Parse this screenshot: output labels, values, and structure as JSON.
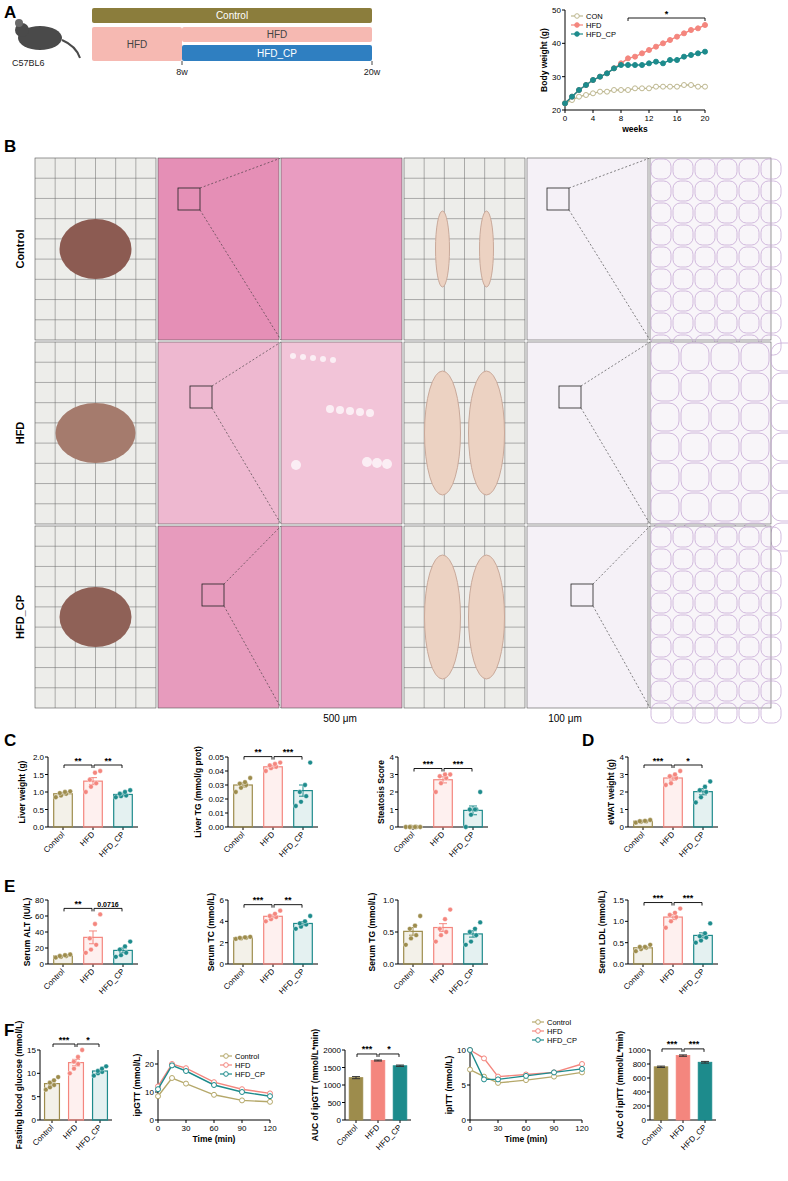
{
  "panel_labels": [
    "A",
    "B",
    "C",
    "D",
    "E",
    "F"
  ],
  "schematic": {
    "subject": "C57BL6",
    "groups": [
      {
        "label": "Control",
        "color": "#8b7d3c"
      },
      {
        "label": "HFD",
        "color": "#f6b9b2"
      },
      {
        "label": "HFD",
        "color": "#f6b9b2"
      },
      {
        "label": "HFD_CP",
        "color": "#2f7fc1"
      }
    ],
    "timepoints": [
      "8w",
      "20w"
    ]
  },
  "histology": {
    "rows": [
      "Control",
      "HFD",
      "HFD_CP"
    ],
    "scale_bars": [
      "500 μm",
      "100 μm"
    ]
  },
  "chart_data": [
    {
      "type": "line",
      "x_label": "weeks",
      "y_label": "Body weight (g)",
      "x": [
        0,
        1,
        2,
        3,
        4,
        5,
        6,
        7,
        8,
        9,
        10,
        11,
        12,
        13,
        14,
        15,
        16,
        17,
        18,
        19,
        20
      ],
      "xlim": [
        0,
        20
      ],
      "xticks": [
        0,
        4,
        8,
        12,
        16,
        20
      ],
      "ylim": [
        20,
        50
      ],
      "yticks": [
        20,
        30,
        40,
        50
      ],
      "legend": "upper left",
      "marker": "circle",
      "series": [
        {
          "name": "CON",
          "color": "#bdb78f",
          "marker": "open_circle",
          "values": [
            22,
            23,
            24,
            24.5,
            25,
            25.5,
            25.5,
            26,
            26,
            26,
            26.5,
            26.5,
            26.5,
            27,
            27,
            27,
            27,
            27.5,
            27.5,
            27,
            27
          ]
        },
        {
          "name": "HFD",
          "color": "#f4867e",
          "values": [
            22,
            24,
            26,
            27.5,
            29,
            30,
            31,
            32.5,
            34,
            35.5,
            36,
            37,
            38,
            39,
            40,
            41,
            42,
            43,
            44,
            44.5,
            45.5
          ]
        },
        {
          "name": "HFD_CP",
          "color": "#1d8b8c",
          "values": [
            22,
            24,
            26,
            27.5,
            29,
            30,
            31,
            32.5,
            33.5,
            33.5,
            33.5,
            33.5,
            34,
            34.5,
            34,
            35,
            35,
            36,
            36.5,
            37,
            37.5
          ]
        }
      ],
      "annotations": [
        {
          "text": "*",
          "x_start": 9,
          "x_end": 20
        }
      ]
    },
    {
      "type": "bar",
      "y_label": "Liver weight (g)",
      "categories": [
        "Control",
        "HFD",
        "HFD_CP"
      ],
      "colors": [
        "#9d8c4c",
        "#f4867e",
        "#1d8b8c"
      ],
      "values": [
        0.95,
        1.31,
        0.93
      ],
      "errors": [
        0.03,
        0.1,
        0.04
      ],
      "points": [
        [
          0.85,
          0.9,
          0.95,
          0.97,
          1.0,
          1.02
        ],
        [
          1.0,
          1.15,
          1.25,
          1.35,
          1.55,
          1.6
        ],
        [
          0.85,
          0.88,
          0.9,
          0.95,
          1.0,
          1.05
        ]
      ],
      "ylim": [
        0,
        2
      ],
      "yticks": [
        {
          "value": 0,
          "label": "0.0"
        },
        {
          "value": 0.5,
          "label": "0.5"
        },
        {
          "value": 1,
          "label": "1.0"
        },
        {
          "value": 1.5,
          "label": "1.5"
        },
        {
          "value": 2,
          "label": "2.0"
        }
      ],
      "annotations": [
        {
          "from": "Control",
          "to": "HFD",
          "text": "**"
        },
        {
          "from": "HFD",
          "to": "HFD_CP",
          "text": "**"
        }
      ]
    },
    {
      "type": "bar",
      "y_label": "Liver TG (mmol/g prot)",
      "categories": [
        "Control",
        "HFD",
        "HFD_CP"
      ],
      "colors": [
        "#9d8c4c",
        "#f4867e",
        "#1d8b8c"
      ],
      "values": [
        0.03,
        0.043,
        0.026
      ],
      "errors": [
        0.0015,
        0.001,
        0.004
      ],
      "points": [
        [
          0.025,
          0.028,
          0.03,
          0.031,
          0.032,
          0.035
        ],
        [
          0.04,
          0.042,
          0.043,
          0.044,
          0.045,
          0.046
        ],
        [
          0.015,
          0.018,
          0.022,
          0.025,
          0.03,
          0.046
        ]
      ],
      "ylim": [
        0,
        0.05
      ],
      "yticks": [
        {
          "value": 0,
          "label": "0.00"
        },
        {
          "value": 0.01,
          "label": "0.01"
        },
        {
          "value": 0.02,
          "label": "0.02"
        },
        {
          "value": 0.03,
          "label": "0.03"
        },
        {
          "value": 0.04,
          "label": "0.04"
        },
        {
          "value": 0.05,
          "label": "0.05"
        }
      ],
      "annotations": [
        {
          "from": "Control",
          "to": "HFD",
          "text": "**"
        },
        {
          "from": "HFD",
          "to": "HFD_CP",
          "text": "***"
        }
      ]
    },
    {
      "type": "bar",
      "y_label": "Steatosis Score",
      "categories": [
        "Control",
        "HFD",
        "HFD_CP"
      ],
      "colors": [
        "#9d8c4c",
        "#f4867e",
        "#1d8b8c"
      ],
      "values": [
        0,
        2.7,
        0.95
      ],
      "errors": [
        0,
        0.18,
        0.25
      ],
      "points": [
        [
          0,
          0,
          0,
          0,
          0,
          0
        ],
        [
          2,
          2.5,
          2.8,
          2.9,
          3,
          3
        ],
        [
          0,
          0.7,
          1,
          1,
          1,
          2
        ]
      ],
      "ylim": [
        0,
        4
      ],
      "yticks": [
        0,
        1,
        2,
        3,
        4
      ],
      "annotations": [
        {
          "from": "Control",
          "to": "HFD",
          "text": "***"
        },
        {
          "from": "HFD",
          "to": "HFD_CP",
          "text": "***"
        }
      ]
    },
    {
      "type": "bar",
      "y_label": "eWAT weight (g)",
      "categories": [
        "Control",
        "HFD",
        "HFD_CP"
      ],
      "colors": [
        "#9d8c4c",
        "#f4867e",
        "#1d8b8c"
      ],
      "values": [
        0.33,
        2.8,
        2.02
      ],
      "errors": [
        0.02,
        0.12,
        0.18
      ],
      "points": [
        [
          0.25,
          0.3,
          0.32,
          0.33,
          0.35,
          0.4
        ],
        [
          2.4,
          2.5,
          2.8,
          2.9,
          3.0,
          3.2
        ],
        [
          1.4,
          1.7,
          2.0,
          2.1,
          2.3,
          2.6
        ]
      ],
      "ylim": [
        0,
        4
      ],
      "yticks": [
        0,
        1,
        2,
        3,
        4
      ],
      "annotations": [
        {
          "from": "Control",
          "to": "HFD",
          "text": "***"
        },
        {
          "from": "HFD",
          "to": "HFD_CP",
          "text": "*"
        }
      ]
    },
    {
      "type": "bar",
      "y_label": "Serum ALT (IU/L)",
      "categories": [
        "Control",
        "HFD",
        "HFD_CP"
      ],
      "colors": [
        "#9d8c4c",
        "#f4867e",
        "#1d8b8c"
      ],
      "values": [
        10,
        33.3,
        17
      ],
      "errors": [
        0.5,
        8,
        3
      ],
      "points": [
        [
          8,
          9,
          10,
          10,
          11,
          12
        ],
        [
          14,
          18,
          24,
          32,
          50,
          62
        ],
        [
          9,
          11,
          14,
          18,
          22,
          28
        ]
      ],
      "ylim": [
        0,
        80
      ],
      "yticks": [
        0,
        20,
        40,
        60,
        80
      ],
      "annotations": [
        {
          "from": "Control",
          "to": "HFD",
          "text": "**"
        },
        {
          "from": "HFD",
          "to": "HFD_CP",
          "text": "0.0716"
        }
      ]
    },
    {
      "type": "bar",
      "y_label": "Serum TC (mmol/L)",
      "categories": [
        "Control",
        "HFD",
        "HFD_CP"
      ],
      "colors": [
        "#9d8c4c",
        "#f4867e",
        "#1d8b8c"
      ],
      "values": [
        2.45,
        4.47,
        3.8
      ],
      "errors": [
        0.03,
        0.14,
        0.17
      ],
      "points": [
        [
          2.35,
          2.4,
          2.45,
          2.45,
          2.5,
          2.55
        ],
        [
          4.0,
          4.2,
          4.4,
          4.5,
          4.7,
          5.0
        ],
        [
          3.3,
          3.5,
          3.7,
          3.8,
          4.0,
          4.5
        ]
      ],
      "ylim": [
        0,
        6
      ],
      "yticks": [
        0,
        2,
        4,
        6
      ],
      "annotations": [
        {
          "from": "Control",
          "to": "HFD",
          "text": "***"
        },
        {
          "from": "HFD",
          "to": "HFD_CP",
          "text": "**"
        }
      ]
    },
    {
      "type": "bar",
      "y_label": "Serum TG (mmol/L)",
      "categories": [
        "Control",
        "HFD",
        "HFD_CP"
      ],
      "colors": [
        "#9d8c4c",
        "#f4867e",
        "#1d8b8c"
      ],
      "values": [
        0.51,
        0.57,
        0.47
      ],
      "errors": [
        0.06,
        0.06,
        0.05
      ],
      "points": [
        [
          0.3,
          0.4,
          0.45,
          0.55,
          0.6,
          0.75
        ],
        [
          0.35,
          0.45,
          0.5,
          0.55,
          0.7,
          0.85
        ],
        [
          0.3,
          0.35,
          0.45,
          0.5,
          0.55,
          0.65
        ]
      ],
      "ylim": [
        0,
        1
      ],
      "yticks": [
        {
          "value": 0,
          "label": "0.0"
        },
        {
          "value": 0.5,
          "label": "0.5"
        },
        {
          "value": 1,
          "label": "1.0"
        }
      ],
      "annotations": []
    },
    {
      "type": "bar",
      "y_label": "Serum LDL (mmol/L)",
      "categories": [
        "Control",
        "HFD",
        "HFD_CP"
      ],
      "colors": [
        "#9d8c4c",
        "#f4867e",
        "#1d8b8c"
      ],
      "values": [
        0.38,
        1.1,
        0.67
      ],
      "errors": [
        0.02,
        0.06,
        0.06
      ],
      "points": [
        [
          0.3,
          0.35,
          0.38,
          0.4,
          0.4,
          0.45
        ],
        [
          0.85,
          1.0,
          1.1,
          1.15,
          1.2,
          1.3
        ],
        [
          0.5,
          0.55,
          0.62,
          0.65,
          0.72,
          0.95
        ]
      ],
      "ylim": [
        0,
        1.5
      ],
      "yticks": [
        {
          "value": 0,
          "label": "0.0"
        },
        {
          "value": 0.5,
          "label": "0.5"
        },
        {
          "value": 1,
          "label": "1.0"
        },
        {
          "value": 1.5,
          "label": "1.5"
        }
      ],
      "annotations": [
        {
          "from": "Control",
          "to": "HFD",
          "text": "***"
        },
        {
          "from": "HFD",
          "to": "HFD_CP",
          "text": "***"
        }
      ]
    },
    {
      "type": "bar",
      "y_label": "Fasting blood glucose (mmol/L)",
      "categories": [
        "Control",
        "HFD",
        "HFD_CP"
      ],
      "colors": [
        "#9d8c4c",
        "#f4867e",
        "#1d8b8c"
      ],
      "values": [
        7.8,
        12.3,
        10.5
      ],
      "errors": [
        0.4,
        0.7,
        0.3
      ],
      "points": [
        [
          6.5,
          7,
          7.5,
          8,
          8.5,
          9.2
        ],
        [
          10,
          11,
          12,
          12.5,
          13.5,
          15
        ],
        [
          9.5,
          10,
          10.3,
          10.5,
          11,
          11.5
        ]
      ],
      "ylim": [
        0,
        15
      ],
      "yticks": [
        0,
        5,
        10,
        15
      ],
      "annotations": [
        {
          "from": "Control",
          "to": "HFD",
          "text": "***"
        },
        {
          "from": "HFD",
          "to": "HFD_CP",
          "text": "*"
        }
      ]
    },
    {
      "type": "line",
      "x_label": "Time (min)",
      "y_label": "ipGTT (mmol/L)",
      "x": [
        0,
        15,
        30,
        60,
        90,
        120
      ],
      "xlim": [
        0,
        120
      ],
      "xticks": [
        0,
        30,
        60,
        90,
        120
      ],
      "ylim": [
        0,
        25
      ],
      "yticks": [
        0,
        10,
        20
      ],
      "legend": "upper right",
      "marker": "open_circle",
      "series": [
        {
          "name": "Control",
          "color": "#b5a86a",
          "values": [
            8.5,
            15,
            13,
            9,
            7,
            6.5
          ]
        },
        {
          "name": "HFD",
          "color": "#f4867e",
          "values": [
            12,
            20,
            18.5,
            13.5,
            11,
            9.5
          ]
        },
        {
          "name": "HFD_CP",
          "color": "#1d8b8c",
          "values": [
            11,
            19.5,
            17.5,
            12.5,
            10,
            8.5
          ]
        }
      ]
    },
    {
      "type": "bar",
      "y_label": "AUC of ipGTT (mmol/L*min)",
      "categories": [
        "Control",
        "HFD",
        "HFD_CP"
      ],
      "colors": [
        "#9d8c4c",
        "#f4867e",
        "#1d8b8c"
      ],
      "values": [
        1210,
        1700,
        1550
      ],
      "errors": [
        30,
        15,
        20
      ],
      "ylim": [
        0,
        2000
      ],
      "yticks": [
        0,
        500,
        1000,
        1500,
        2000
      ],
      "annotations": [
        {
          "from": "Control",
          "to": "HFD",
          "text": "***"
        },
        {
          "from": "HFD",
          "to": "HFD_CP",
          "text": "*"
        }
      ]
    },
    {
      "type": "line",
      "x_label": "Time (min)",
      "y_label": "ipITT (mmol/L)",
      "x": [
        0,
        15,
        30,
        60,
        90,
        120
      ],
      "xlim": [
        0,
        120
      ],
      "xticks": [
        0,
        30,
        60,
        90,
        120
      ],
      "ylim": [
        0,
        10
      ],
      "yticks": [
        0,
        5,
        10
      ],
      "legend": "top",
      "marker": "open_circle",
      "series": [
        {
          "name": "Control",
          "color": "#b5a86a",
          "values": [
            7.2,
            6.2,
            5.3,
            5.7,
            6.2,
            6.8
          ]
        },
        {
          "name": "HFD",
          "color": "#f4867e",
          "values": [
            10,
            8.8,
            6.2,
            6.5,
            6.8,
            8
          ]
        },
        {
          "name": "HFD_CP",
          "color": "#1d8b8c",
          "values": [
            10,
            5.8,
            5.8,
            6.3,
            6.8,
            7.3
          ]
        }
      ]
    },
    {
      "type": "bar",
      "y_label": "AUC of ipITT (mmol/L*min)",
      "categories": [
        "Control",
        "HFD",
        "HFD_CP"
      ],
      "colors": [
        "#9d8c4c",
        "#f4867e",
        "#1d8b8c"
      ],
      "values": [
        760,
        920,
        825
      ],
      "errors": [
        10,
        10,
        12
      ],
      "ylim": [
        0,
        1000
      ],
      "yticks": [
        0,
        200,
        400,
        600,
        800,
        1000
      ],
      "annotations": [
        {
          "from": "Control",
          "to": "HFD",
          "text": "***"
        },
        {
          "from": "HFD",
          "to": "HFD_CP",
          "text": "***"
        }
      ]
    }
  ]
}
